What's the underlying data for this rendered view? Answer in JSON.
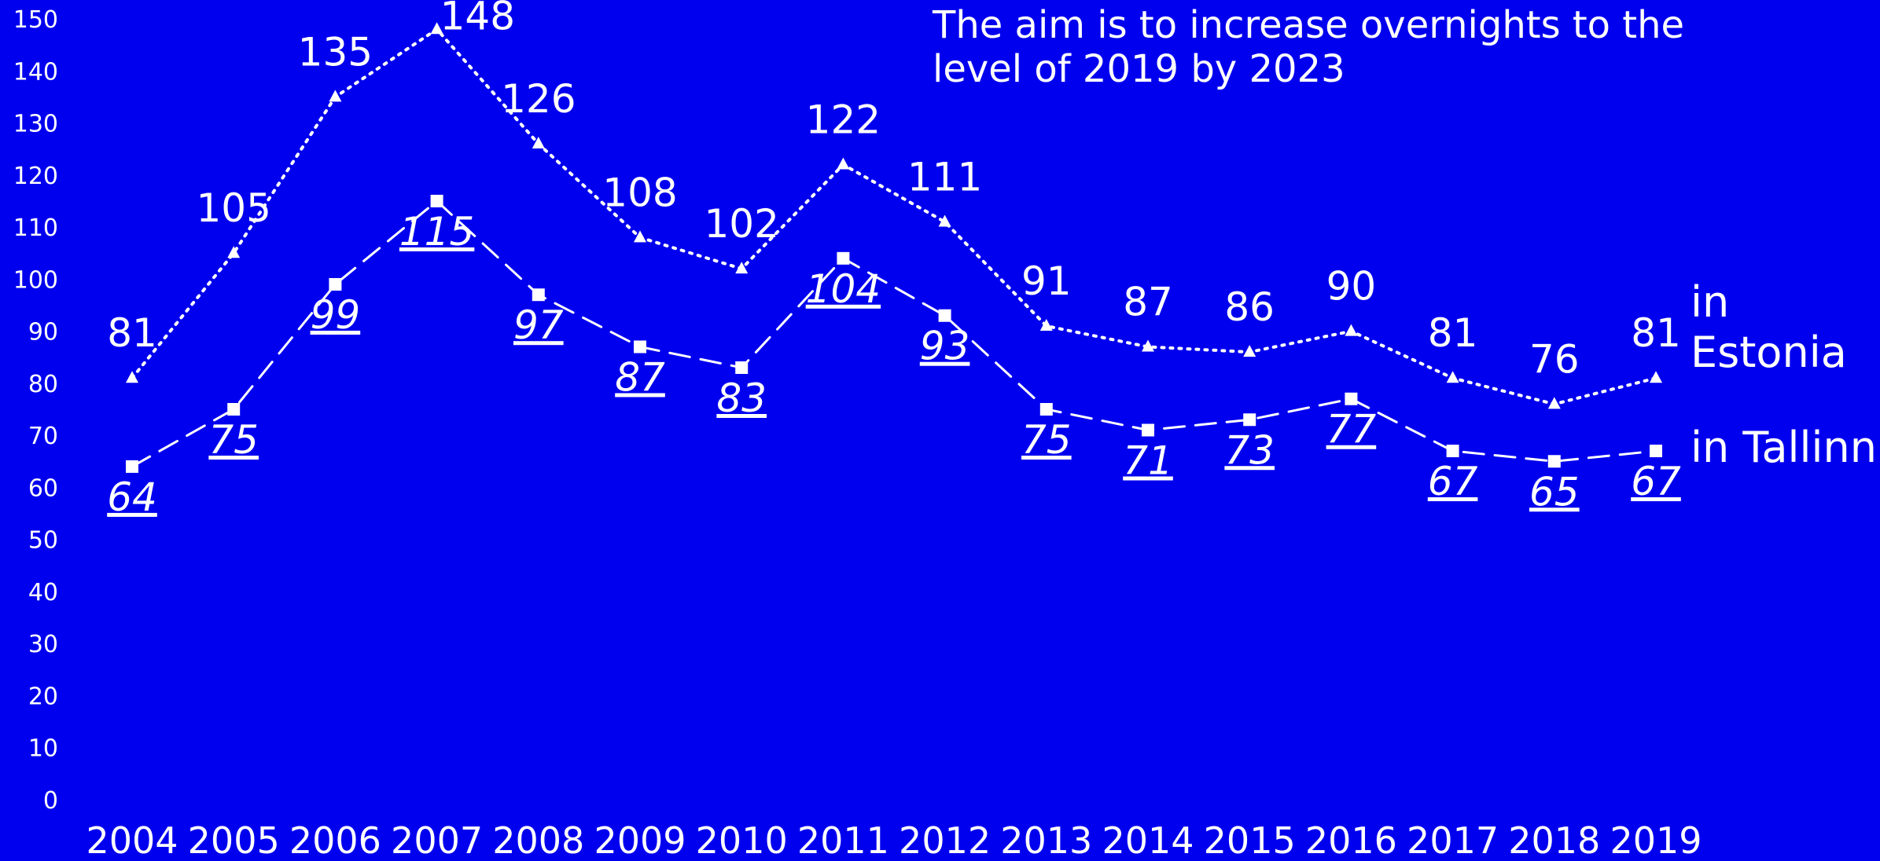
{
  "chart_data": {
    "type": "line",
    "title": "",
    "xlabel": "",
    "ylabel": "",
    "ylim": [
      0,
      150
    ],
    "yticks": [
      0,
      10,
      20,
      30,
      40,
      50,
      60,
      70,
      80,
      90,
      100,
      110,
      120,
      130,
      140,
      150
    ],
    "categories": [
      "2004",
      "2005",
      "2006",
      "2007",
      "2008",
      "2009",
      "2010",
      "2011",
      "2012",
      "2013",
      "2014",
      "2015",
      "2016",
      "2017",
      "2018",
      "2019"
    ],
    "series": [
      {
        "name_lines": [
          "in",
          "Estonia"
        ],
        "marker": "triangle",
        "line_style": "dotted",
        "label_style": "plain",
        "values": [
          81,
          105,
          135,
          148,
          126,
          108,
          102,
          122,
          111,
          91,
          87,
          86,
          90,
          81,
          76,
          81
        ]
      },
      {
        "name_lines": [
          "in Tallinn"
        ],
        "marker": "square",
        "line_style": "dashed",
        "label_style": "italic-underline",
        "values": [
          64,
          75,
          99,
          115,
          97,
          87,
          83,
          104,
          93,
          75,
          71,
          73,
          77,
          67,
          65,
          67
        ]
      }
    ],
    "annotation_lines": [
      "The aim is to increase overnights to the",
      "level of 2019 by 2023"
    ],
    "grid": false,
    "colors": {
      "background": "#0000EE",
      "foreground": "#FFFFFF"
    }
  }
}
